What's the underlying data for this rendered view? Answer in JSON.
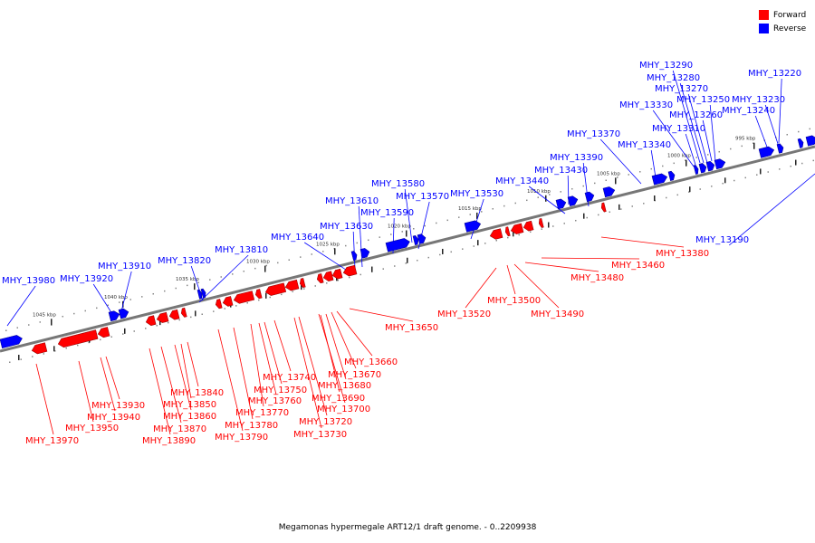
{
  "caption": "Megamonas hypermegale ART12/1 draft genome. - 0..2209938",
  "legend": {
    "forward_label": "Forward",
    "reverse_label": "Reverse",
    "forward_color": "#ff0000",
    "reverse_color": "#0000ff"
  },
  "scale_labels": [
    "995 kbp",
    "1000 kbp",
    "1005 kbp",
    "1010 kbp",
    "1015 kbp",
    "1020 kbp",
    "1025 kbp",
    "1030 kbp",
    "1035 kbp",
    "1040 kbp",
    "1045 kbp"
  ],
  "forward_genes": [
    "MHY_13380",
    "MHY_13460",
    "MHY_13480",
    "MHY_13490",
    "MHY_13500",
    "MHY_13520",
    "MHY_13650",
    "MHY_13660",
    "MHY_13670",
    "MHY_13680",
    "MHY_13690",
    "MHY_13700",
    "MHY_13720",
    "MHY_13730",
    "MHY_13740",
    "MHY_13750",
    "MHY_13760",
    "MHY_13770",
    "MHY_13780",
    "MHY_13790",
    "MHY_13840",
    "MHY_13850",
    "MHY_13860",
    "MHY_13870",
    "MHY_13890",
    "MHY_13930",
    "MHY_13940",
    "MHY_13950",
    "MHY_13970"
  ],
  "reverse_genes": [
    "MHY_13290",
    "MHY_13280",
    "MHY_13270",
    "MHY_13250",
    "MHY_13330",
    "MHY_13260",
    "MHY_13310",
    "MHY_13220",
    "MHY_13230",
    "MHY_13240",
    "MHY_13370",
    "MHY_13340",
    "MHY_13390",
    "MHY_13430",
    "MHY_13440",
    "MHY_13530",
    "MHY_13580",
    "MHY_13570",
    "MHY_13610",
    "MHY_13590",
    "MHY_13630",
    "MHY_13640",
    "MHY_13810",
    "MHY_13820",
    "MHY_13910",
    "MHY_13920",
    "MHY_13980",
    "MHY_13190"
  ]
}
